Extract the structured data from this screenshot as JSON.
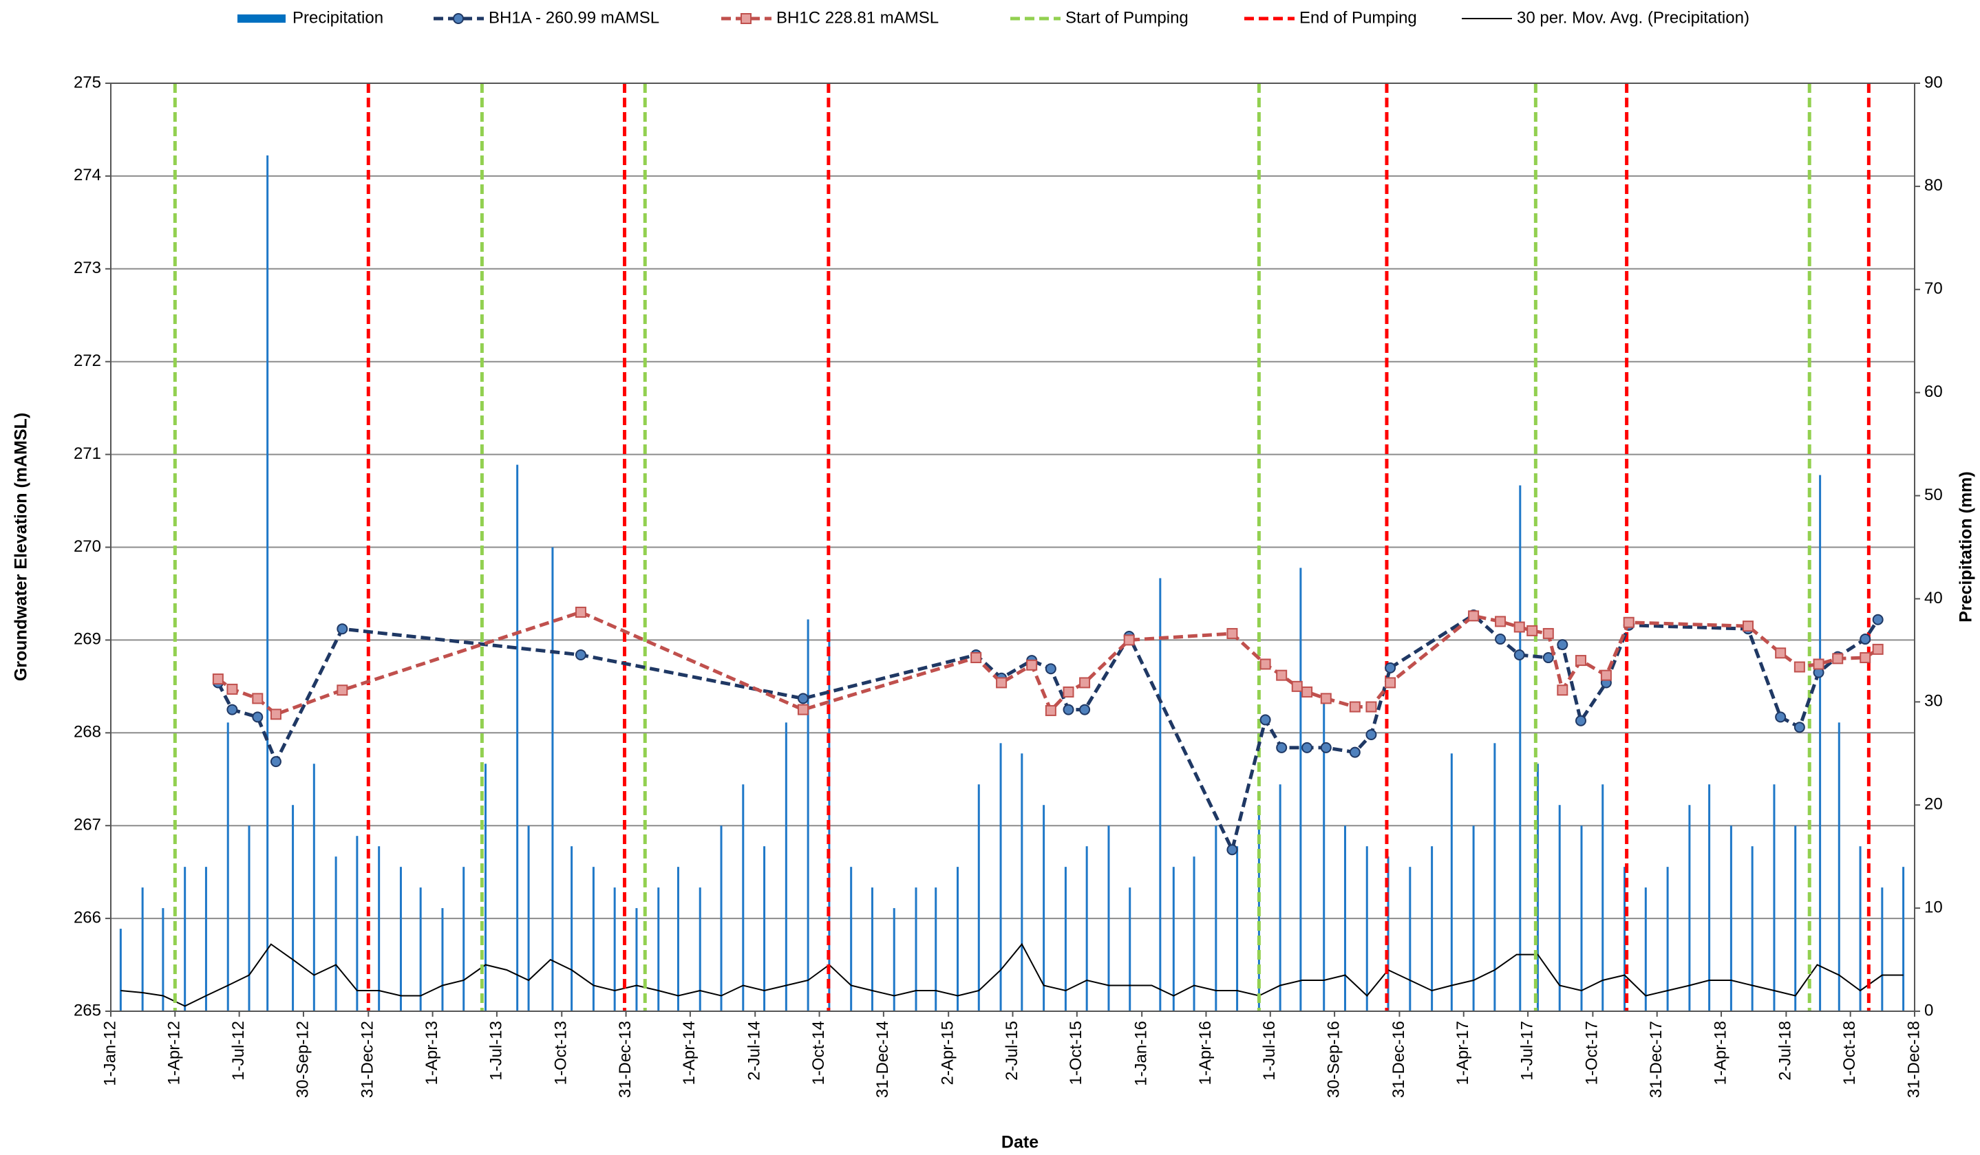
{
  "chart_data": {
    "type": "line",
    "xlabel": "Date",
    "ylabel": "Groundwater Elevation (mAMSL)",
    "y2label": "Precipitation (mm)",
    "xlim": [
      "2012-01-01",
      "2018-12-31"
    ],
    "xticks": [
      {
        "value": "2012-01-01",
        "label": "1-Jan-12"
      },
      {
        "value": "2012-04-01",
        "label": "1-Apr-12"
      },
      {
        "value": "2012-07-01",
        "label": "1-Jul-12"
      },
      {
        "value": "2012-09-30",
        "label": "30-Sep-12"
      },
      {
        "value": "2012-12-31",
        "label": "31-Dec-12"
      },
      {
        "value": "2013-04-01",
        "label": "1-Apr-13"
      },
      {
        "value": "2013-07-01",
        "label": "1-Jul-13"
      },
      {
        "value": "2013-10-01",
        "label": "1-Oct-13"
      },
      {
        "value": "2013-12-31",
        "label": "31-Dec-13"
      },
      {
        "value": "2014-04-01",
        "label": "1-Apr-14"
      },
      {
        "value": "2014-07-02",
        "label": "2-Jul-14"
      },
      {
        "value": "2014-10-01",
        "label": "1-Oct-14"
      },
      {
        "value": "2014-12-31",
        "label": "31-Dec-14"
      },
      {
        "value": "2015-04-02",
        "label": "2-Apr-15"
      },
      {
        "value": "2015-07-02",
        "label": "2-Jul-15"
      },
      {
        "value": "2015-10-01",
        "label": "1-Oct-15"
      },
      {
        "value": "2016-01-01",
        "label": "1-Jan-16"
      },
      {
        "value": "2016-04-01",
        "label": "1-Apr-16"
      },
      {
        "value": "2016-07-01",
        "label": "1-Jul-16"
      },
      {
        "value": "2016-09-30",
        "label": "30-Sep-16"
      },
      {
        "value": "2016-12-31",
        "label": "31-Dec-16"
      },
      {
        "value": "2017-04-01",
        "label": "1-Apr-17"
      },
      {
        "value": "2017-07-01",
        "label": "1-Jul-17"
      },
      {
        "value": "2017-10-01",
        "label": "1-Oct-17"
      },
      {
        "value": "2017-12-31",
        "label": "31-Dec-17"
      },
      {
        "value": "2018-04-01",
        "label": "1-Apr-18"
      },
      {
        "value": "2018-07-02",
        "label": "2-Jul-18"
      },
      {
        "value": "2018-10-01",
        "label": "1-Oct-18"
      },
      {
        "value": "2018-12-31",
        "label": "31-Dec-18"
      }
    ],
    "ylim": [
      265,
      275
    ],
    "yticks": [
      265,
      266,
      267,
      268,
      269,
      270,
      271,
      272,
      273,
      274,
      275
    ],
    "y2lim": [
      0,
      90
    ],
    "y2ticks": [
      0,
      10,
      20,
      30,
      40,
      50,
      60,
      70,
      80,
      90
    ],
    "grid": true,
    "legend": "top",
    "series": [
      {
        "name": "Precipitation",
        "type": "bar",
        "axis": "y2",
        "color": "#1f78c8",
        "x": [
          "2012-01-15",
          "2012-02-15",
          "2012-03-15",
          "2012-04-15",
          "2012-05-15",
          "2012-06-15",
          "2012-07-15",
          "2012-08-10",
          "2012-09-15",
          "2012-10-15",
          "2012-11-15",
          "2012-12-15",
          "2013-01-15",
          "2013-02-15",
          "2013-03-15",
          "2013-04-15",
          "2013-05-15",
          "2013-06-15",
          "2013-07-30",
          "2013-08-15",
          "2013-09-18",
          "2013-10-15",
          "2013-11-15",
          "2013-12-15",
          "2014-01-15",
          "2014-02-15",
          "2014-03-15",
          "2014-04-15",
          "2014-05-15",
          "2014-06-15",
          "2014-07-15",
          "2014-08-15",
          "2014-09-15",
          "2014-10-15",
          "2014-11-15",
          "2014-12-15",
          "2015-01-15",
          "2015-02-15",
          "2015-03-15",
          "2015-04-15",
          "2015-05-15",
          "2015-06-15",
          "2015-07-15",
          "2015-08-15",
          "2015-09-15",
          "2015-10-15",
          "2015-11-15",
          "2015-12-15",
          "2016-01-27",
          "2016-02-15",
          "2016-03-15",
          "2016-04-15",
          "2016-05-15",
          "2016-06-15",
          "2016-07-15",
          "2016-08-13",
          "2016-09-15",
          "2016-10-15",
          "2016-11-15",
          "2016-12-15",
          "2017-01-15",
          "2017-02-15",
          "2017-03-15",
          "2017-04-15",
          "2017-05-15",
          "2017-06-20",
          "2017-07-15",
          "2017-08-15",
          "2017-09-15",
          "2017-10-15",
          "2017-11-15",
          "2017-12-15",
          "2018-01-15",
          "2018-02-15",
          "2018-03-15",
          "2018-04-15",
          "2018-05-15",
          "2018-06-15",
          "2018-07-15",
          "2018-08-19",
          "2018-09-15",
          "2018-10-15",
          "2018-11-15",
          "2018-12-15"
        ],
        "values": [
          8,
          12,
          10,
          14,
          14,
          28,
          18,
          83,
          20,
          24,
          15,
          17,
          16,
          14,
          12,
          10,
          14,
          24,
          53,
          18,
          45,
          16,
          14,
          12,
          10,
          12,
          14,
          12,
          18,
          22,
          16,
          28,
          38,
          37,
          14,
          12,
          10,
          12,
          12,
          14,
          22,
          26,
          25,
          20,
          14,
          16,
          18,
          12,
          42,
          14,
          15,
          18,
          16,
          20,
          22,
          43,
          30,
          18,
          16,
          15,
          14,
          16,
          25,
          18,
          26,
          51,
          24,
          20,
          18,
          22,
          14,
          12,
          14,
          20,
          22,
          18,
          16,
          22,
          18,
          52,
          28,
          16,
          12,
          14
        ]
      },
      {
        "name": "BH1A - 260.99 mAMSL",
        "type": "line",
        "marker": "circle",
        "dash": true,
        "color": "#1f3864",
        "marker_color": "#4f81bd",
        "x": [
          "2012-06-01",
          "2012-06-21",
          "2012-07-27",
          "2012-08-22",
          "2012-11-24",
          "2013-10-28",
          "2014-09-08",
          "2015-05-11",
          "2015-06-16",
          "2015-07-29",
          "2015-08-25",
          "2015-09-19",
          "2015-10-12",
          "2015-12-14",
          "2016-05-08",
          "2016-06-24",
          "2016-07-17",
          "2016-08-22",
          "2016-09-18",
          "2016-10-29",
          "2016-11-21",
          "2016-12-18",
          "2017-04-15",
          "2017-05-23",
          "2017-06-19",
          "2017-07-30",
          "2017-08-19",
          "2017-09-14",
          "2017-10-20",
          "2017-11-21",
          "2018-05-09",
          "2018-06-24",
          "2018-07-21",
          "2018-08-17",
          "2018-09-13",
          "2018-10-22",
          "2018-11-09"
        ],
        "values": [
          268.54,
          268.25,
          268.17,
          267.69,
          269.12,
          268.84,
          268.37,
          268.84,
          268.59,
          268.78,
          268.69,
          268.25,
          268.25,
          269.04,
          266.74,
          268.14,
          267.84,
          267.84,
          267.84,
          267.79,
          267.98,
          268.7,
          269.27,
          269.01,
          268.84,
          268.81,
          268.95,
          268.13,
          268.54,
          269.16,
          269.12,
          268.17,
          268.06,
          268.65,
          268.82,
          269.01,
          269.22
        ]
      },
      {
        "name": "BH1C 228.81 mAMSL",
        "type": "line",
        "marker": "square",
        "dash": true,
        "color": "#c0504d",
        "marker_color": "#e6a09e",
        "x": [
          "2012-06-01",
          "2012-06-21",
          "2012-07-27",
          "2012-08-22",
          "2012-11-24",
          "2013-10-28",
          "2014-09-08",
          "2015-05-11",
          "2015-06-16",
          "2015-07-29",
          "2015-08-25",
          "2015-09-19",
          "2015-10-12",
          "2015-12-14",
          "2016-05-08",
          "2016-06-24",
          "2016-07-17",
          "2016-08-08",
          "2016-08-22",
          "2016-09-18",
          "2016-10-29",
          "2016-11-21",
          "2016-12-18",
          "2017-04-15",
          "2017-05-23",
          "2017-06-19",
          "2017-07-07",
          "2017-07-30",
          "2017-08-19",
          "2017-09-14",
          "2017-10-20",
          "2017-11-21",
          "2018-05-09",
          "2018-06-24",
          "2018-07-21",
          "2018-08-17",
          "2018-09-13",
          "2018-10-22",
          "2018-11-09"
        ],
        "values": [
          268.58,
          268.47,
          268.37,
          268.2,
          268.46,
          269.3,
          268.25,
          268.81,
          268.54,
          268.73,
          268.24,
          268.44,
          268.54,
          269.0,
          269.07,
          268.74,
          268.62,
          268.5,
          268.44,
          268.37,
          268.28,
          268.28,
          268.54,
          269.26,
          269.2,
          269.14,
          269.1,
          269.07,
          268.46,
          268.78,
          268.62,
          269.19,
          269.15,
          268.86,
          268.71,
          268.74,
          268.8,
          268.81,
          268.9
        ]
      },
      {
        "name": "Start of Pumping",
        "type": "vline",
        "color": "#92d050",
        "x": [
          "2012-04-01",
          "2013-06-10",
          "2014-01-27",
          "2016-06-15",
          "2017-07-12",
          "2018-08-04"
        ]
      },
      {
        "name": "End of Pumping",
        "type": "vline",
        "color": "#ff0000",
        "x": [
          "2012-12-31",
          "2013-12-29",
          "2014-10-14",
          "2016-12-13",
          "2017-11-18",
          "2018-10-27"
        ]
      },
      {
        "name": "30 per. Mov. Avg. (Precipitation)",
        "type": "line",
        "axis": "y2",
        "color": "#000000",
        "x": [
          "2012-01-15",
          "2012-02-15",
          "2012-03-15",
          "2012-04-15",
          "2012-05-15",
          "2012-06-15",
          "2012-07-15",
          "2012-08-15",
          "2012-09-15",
          "2012-10-15",
          "2012-11-15",
          "2012-12-15",
          "2013-01-15",
          "2013-02-15",
          "2013-03-15",
          "2013-04-15",
          "2013-05-15",
          "2013-06-15",
          "2013-07-15",
          "2013-08-15",
          "2013-09-15",
          "2013-10-15",
          "2013-11-15",
          "2013-12-15",
          "2014-01-15",
          "2014-02-15",
          "2014-03-15",
          "2014-04-15",
          "2014-05-15",
          "2014-06-15",
          "2014-07-15",
          "2014-08-15",
          "2014-09-15",
          "2014-10-15",
          "2014-11-15",
          "2014-12-15",
          "2015-01-15",
          "2015-02-15",
          "2015-03-15",
          "2015-04-15",
          "2015-05-15",
          "2015-06-15",
          "2015-07-15",
          "2015-08-15",
          "2015-09-15",
          "2015-10-15",
          "2015-11-15",
          "2015-12-15",
          "2016-01-15",
          "2016-02-15",
          "2016-03-15",
          "2016-04-15",
          "2016-05-15",
          "2016-06-15",
          "2016-07-15",
          "2016-08-15",
          "2016-09-15",
          "2016-10-15",
          "2016-11-15",
          "2016-12-15",
          "2017-01-15",
          "2017-02-15",
          "2017-03-15",
          "2017-04-15",
          "2017-05-15",
          "2017-06-15",
          "2017-07-15",
          "2017-08-15",
          "2017-09-15",
          "2017-10-15",
          "2017-11-15",
          "2017-12-15",
          "2018-01-15",
          "2018-02-15",
          "2018-03-15",
          "2018-04-15",
          "2018-05-15",
          "2018-06-15",
          "2018-07-15",
          "2018-08-15",
          "2018-09-15",
          "2018-10-15",
          "2018-11-15",
          "2018-12-15"
        ],
        "values": [
          2,
          1.8,
          1.5,
          0.5,
          1.5,
          2.5,
          3.5,
          6.5,
          5,
          3.5,
          4.5,
          2,
          2,
          1.5,
          1.5,
          2.5,
          3,
          4.5,
          4,
          3,
          5,
          4,
          2.5,
          2,
          2.5,
          2,
          1.5,
          2,
          1.5,
          2.5,
          2,
          2.5,
          3,
          4.5,
          2.5,
          2,
          1.5,
          2,
          2,
          1.5,
          2,
          4,
          6.5,
          2.5,
          2,
          3,
          2.5,
          2.5,
          2.5,
          1.5,
          2.5,
          2,
          2,
          1.5,
          2.5,
          3,
          3,
          3.5,
          1.5,
          4,
          3,
          2,
          2.5,
          3,
          4,
          5.5,
          5.5,
          2.5,
          2,
          3,
          3.5,
          1.5,
          2,
          2.5,
          3,
          3,
          2.5,
          2,
          1.5,
          4.5,
          3.5,
          2,
          3.5,
          3.5
        ]
      }
    ]
  }
}
